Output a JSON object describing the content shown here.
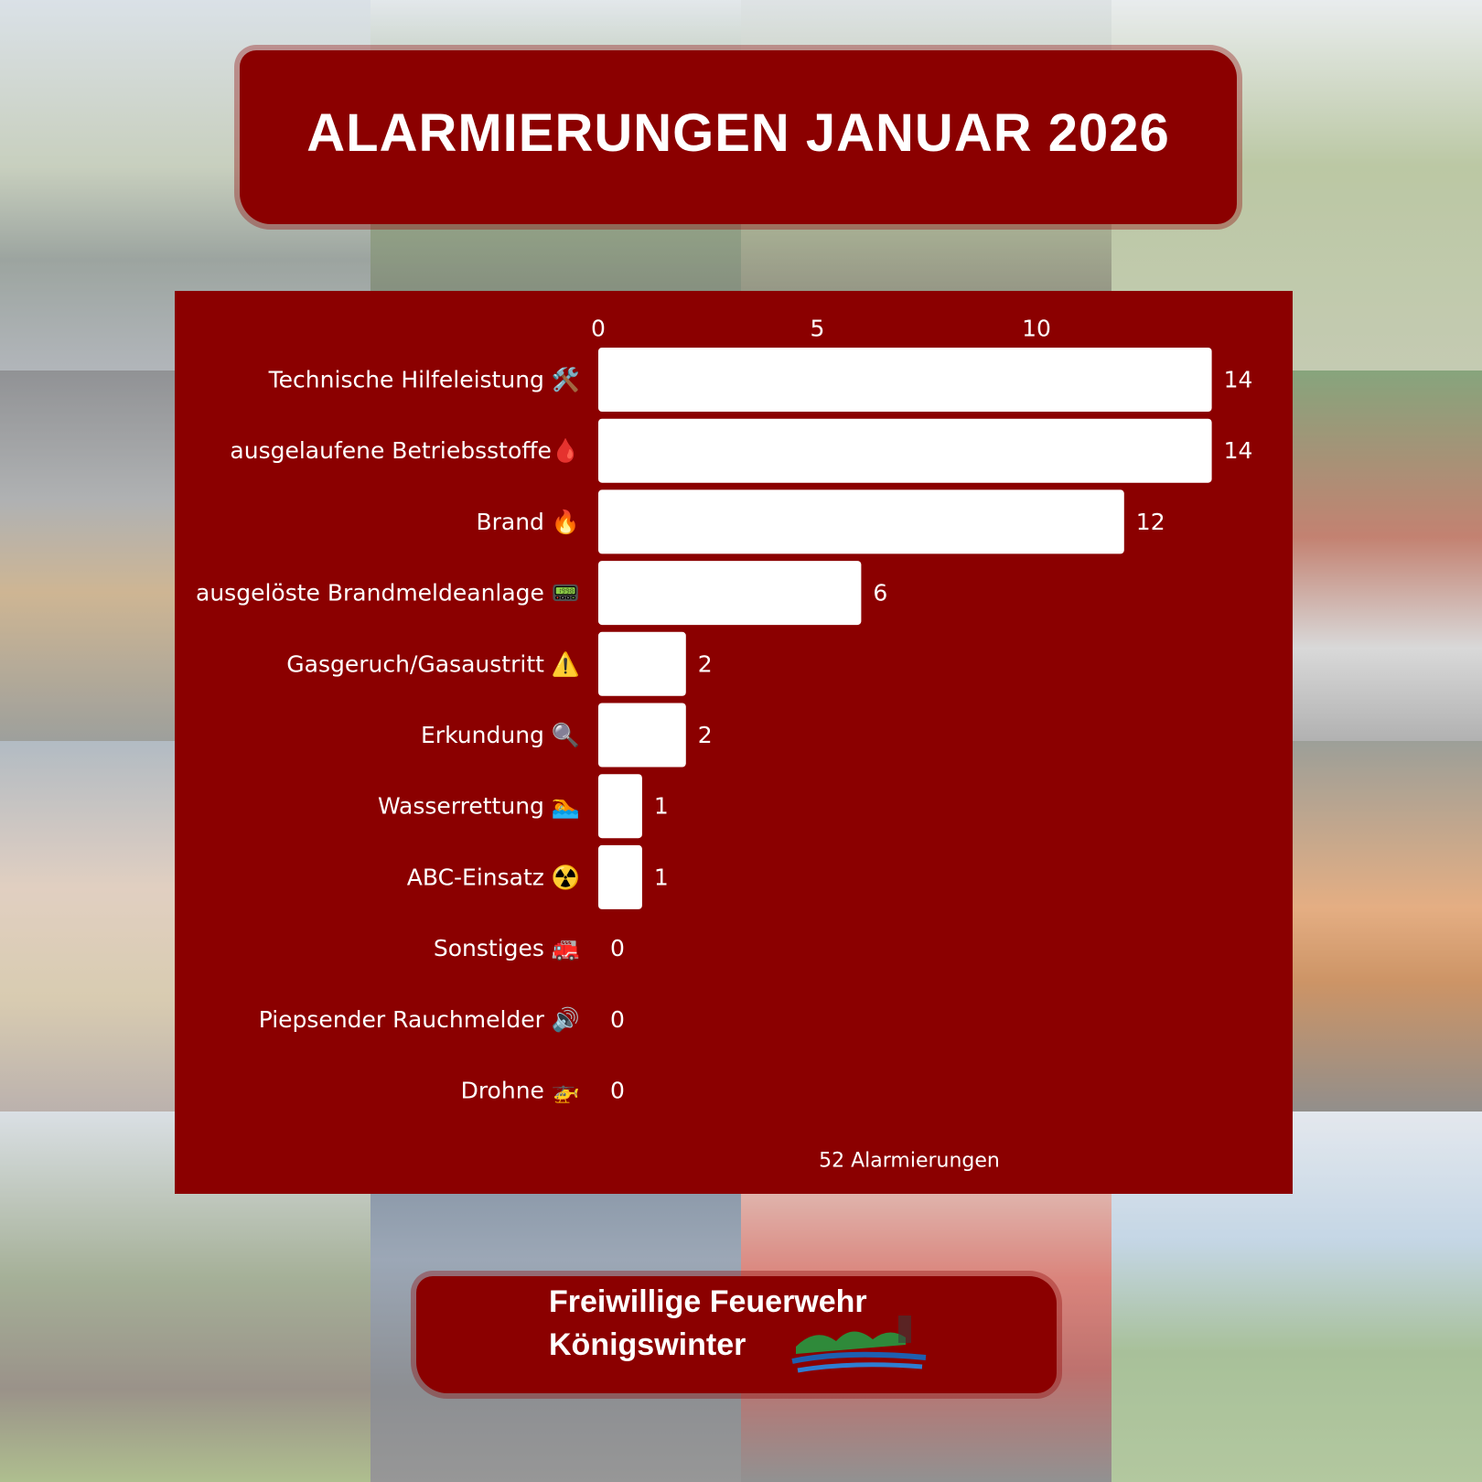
{
  "header": {
    "title": "ALARMIERUNGEN JANUAR 2026"
  },
  "footer": {
    "org_line1": "Freiwillige Feuerwehr",
    "org_line2": "Königswinter"
  },
  "colors": {
    "panel": "#8b0000",
    "bars": "#ffffff",
    "text": "#ffffff"
  },
  "chart_data": {
    "type": "bar",
    "orientation": "horizontal",
    "categories": [
      "Technische Hilfeleistung 🛠️",
      "ausgelaufene Betriebsstoffe🩸",
      "Brand 🔥",
      "ausgelöste Brandmeldeanlage 📟",
      "Gasgeruch/Gasaustritt ⚠️",
      "Erkundung 🔍",
      "Wasserrettung 🏊",
      "ABC-Einsatz ☢️",
      "Sonstiges 🚒",
      "Piepsender Rauchmelder 🔊",
      "Drohne 🚁"
    ],
    "values": [
      14,
      14,
      12,
      6,
      2,
      2,
      1,
      1,
      0,
      0,
      0
    ],
    "value_labels": [
      "14",
      "14",
      "12",
      "6",
      "2",
      "2",
      "1",
      "1",
      "0",
      "0",
      "0"
    ],
    "x_ticks": [
      "0",
      "5",
      "10"
    ],
    "xlim": [
      0,
      14
    ],
    "x_axis_position": "top",
    "grid": false,
    "bar_color": "#ffffff",
    "total_label": "52 Alarmierungen"
  }
}
